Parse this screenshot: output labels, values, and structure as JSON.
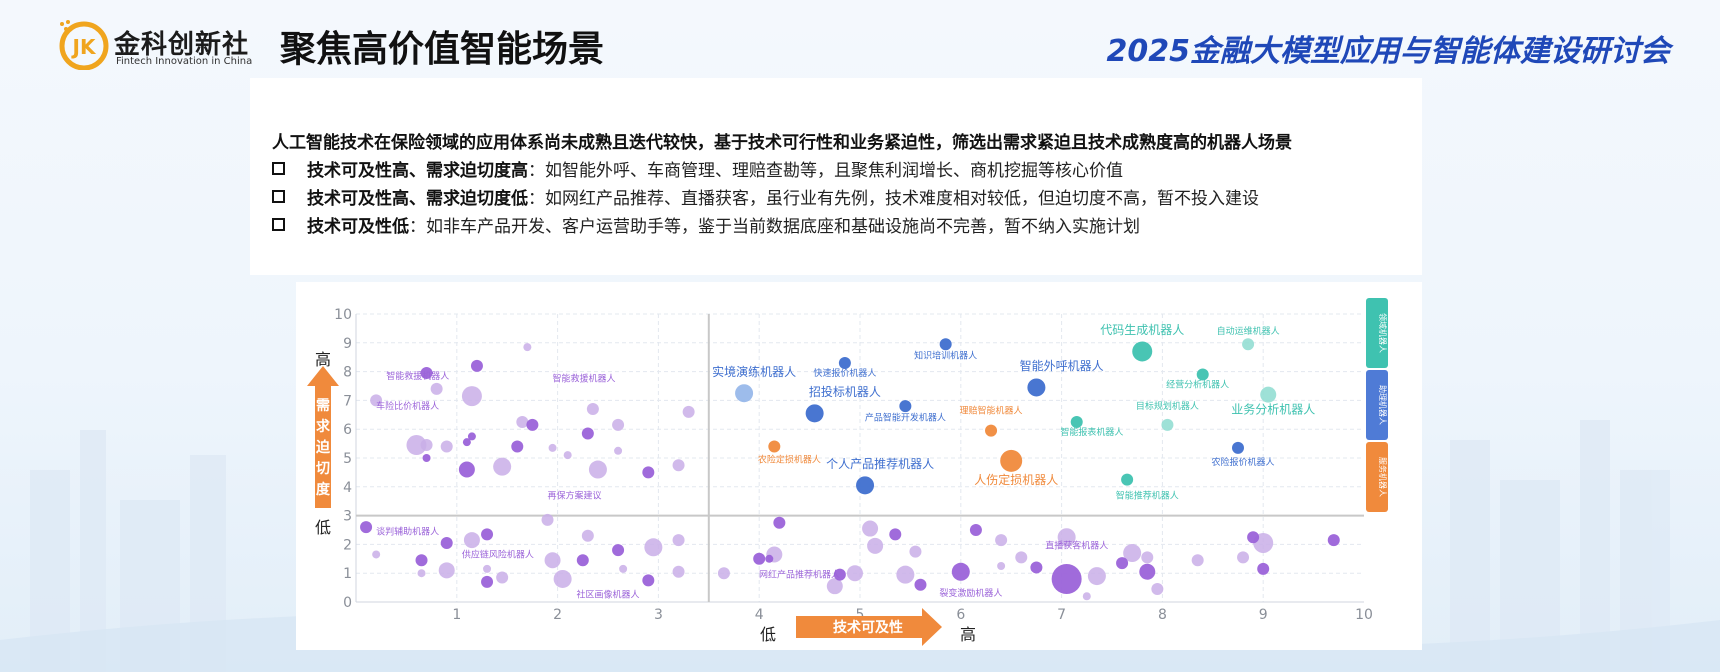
{
  "header": {
    "logo_cn": "金科创新社",
    "logo_en": "Fintech Innovation in China",
    "logo_mark": "JK",
    "title": "聚焦高价值智能场景",
    "event": "2025金融大模型应用与智能体建设研讨会"
  },
  "textbox": {
    "intro": "人工智能技术在保险领域的应用体系尚未成熟且迭代较快，基于技术可行性和业务紧迫性，筛选出需求紧迫且技术成熟度高的机器人场景",
    "bullets": [
      {
        "bold": "技术可及性高、需求迫切度高",
        "text": "：如智能外呼、车商管理、理赔查勘等，且聚焦利润增长、商机挖掘等核心价值"
      },
      {
        "bold": "技术可及性高、需求迫切度低",
        "text": "：如网红产品推荐、直播获客，虽行业有先例，技术难度相对较低，但迫切度不高，暂不投入建设"
      },
      {
        "bold": "技术可及性低",
        "text": "：如非车产品开发、客户运营助手等，鉴于当前数据底座和基础设施尚不完善，暂不纳入实施计划"
      }
    ]
  },
  "chart_data": {
    "type": "scatter",
    "xlim": [
      0,
      10
    ],
    "ylim": [
      0,
      10
    ],
    "x_ticks": [
      "1",
      "2",
      "3",
      "4",
      "5",
      "6",
      "7",
      "8",
      "9",
      "10"
    ],
    "y_ticks": [
      "0",
      "1",
      "2",
      "3",
      "4",
      "5",
      "6",
      "7",
      "8",
      "9",
      "10"
    ],
    "divider_x": 3.5,
    "divider_y": 3,
    "grid": true,
    "x_axis": {
      "low": "低",
      "label": "技术可及性",
      "high": "高"
    },
    "y_axis": {
      "high": "高",
      "label": "需求迫切度",
      "low": "低"
    },
    "legend": [
      "领域机器人",
      "助理机器人",
      "服务机器人"
    ],
    "colors": {
      "purple_light": "#c9aee8",
      "purple_dark": "#9b63d9",
      "blue_light": "#8cb0e8",
      "blue_dark": "#3f6fcf",
      "teal_light": "#8ddcd0",
      "teal_dark": "#3fc2b0",
      "orange": "#f08a3c"
    },
    "labels": [
      {
        "text": "代码生成机器人",
        "x": 7.8,
        "y": 9.3,
        "color": "teal_dark",
        "size": 12
      },
      {
        "text": "自动运维机器人",
        "x": 8.85,
        "y": 9.3,
        "color": "teal_dark",
        "size": 9
      },
      {
        "text": "知识培训机器人",
        "x": 5.85,
        "y": 8.45,
        "color": "blue_dark",
        "size": 9
      },
      {
        "text": "实境演练机器人",
        "x": 3.95,
        "y": 7.85,
        "color": "blue_dark",
        "size": 12
      },
      {
        "text": "快速报价机器人",
        "x": 4.85,
        "y": 7.85,
        "color": "blue_dark",
        "size": 9
      },
      {
        "text": "智能外呼机器人",
        "x": 7.0,
        "y": 8.05,
        "color": "blue_dark",
        "size": 12
      },
      {
        "text": "经营分析机器人",
        "x": 8.35,
        "y": 7.45,
        "color": "teal_dark",
        "size": 9
      },
      {
        "text": "招投标机器人",
        "x": 4.85,
        "y": 7.15,
        "color": "blue_dark",
        "size": 12
      },
      {
        "text": "产品智能开发机器人",
        "x": 5.45,
        "y": 6.3,
        "color": "blue_dark",
        "size": 9
      },
      {
        "text": "理赔智能机器人",
        "x": 6.3,
        "y": 6.55,
        "color": "orange",
        "size": 9
      },
      {
        "text": "目标规划机器人",
        "x": 8.05,
        "y": 6.7,
        "color": "teal_dark",
        "size": 9
      },
      {
        "text": "业务分析机器人",
        "x": 9.1,
        "y": 6.55,
        "color": "teal_dark",
        "size": 12
      },
      {
        "text": "智能报表机器人",
        "x": 7.3,
        "y": 5.8,
        "color": "teal_dark",
        "size": 9
      },
      {
        "text": "农险定损机器人",
        "x": 4.3,
        "y": 4.85,
        "color": "orange",
        "size": 9
      },
      {
        "text": "农险报价机器人",
        "x": 8.8,
        "y": 4.75,
        "color": "blue_dark",
        "size": 9
      },
      {
        "text": "个人产品推荐机器人",
        "x": 5.2,
        "y": 4.65,
        "color": "blue_dark",
        "size": 12
      },
      {
        "text": "人伤定损机器人",
        "x": 6.55,
        "y": 4.1,
        "color": "orange",
        "size": 12
      },
      {
        "text": "智能推荐机器人",
        "x": 7.85,
        "y": 3.6,
        "color": "teal_dark",
        "size": 9
      },
      {
        "text": "智能救援机器人",
        "x": 0.3,
        "y": 7.75,
        "color": "purple_dark",
        "size": 9,
        "anchor": "start"
      },
      {
        "text": "智能救援机器人",
        "x": 1.95,
        "y": 7.65,
        "color": "purple_dark",
        "size": 9,
        "anchor": "start"
      },
      {
        "text": "车险比价机器人",
        "x": 0.2,
        "y": 6.7,
        "color": "purple_dark",
        "size": 9,
        "anchor": "start"
      },
      {
        "text": "再保方案建议",
        "x": 1.9,
        "y": 3.6,
        "color": "purple_dark",
        "size": 9,
        "anchor": "start"
      },
      {
        "text": "谈判辅助机器人",
        "x": 0.2,
        "y": 2.35,
        "color": "purple_dark",
        "size": 9,
        "anchor": "start"
      },
      {
        "text": "供应链风险机器人",
        "x": 1.05,
        "y": 1.55,
        "color": "purple_dark",
        "size": 9,
        "anchor": "start"
      },
      {
        "text": "社区画像机器人",
        "x": 2.5,
        "y": 0.15,
        "color": "purple_dark",
        "size": 9
      },
      {
        "text": "网红产品推荐机器人",
        "x": 4.4,
        "y": 0.85,
        "color": "purple_dark",
        "size": 9
      },
      {
        "text": "裂变激励机器人",
        "x": 6.1,
        "y": 0.2,
        "color": "purple_dark",
        "size": 9
      },
      {
        "text": "直播获客机器人",
        "x": 7.15,
        "y": 1.85,
        "color": "purple_dark",
        "size": 9
      }
    ],
    "points": [
      {
        "x": 7.8,
        "y": 8.7,
        "r": 10,
        "color": "teal_dark"
      },
      {
        "x": 8.85,
        "y": 8.95,
        "r": 6,
        "color": "teal_light"
      },
      {
        "x": 8.4,
        "y": 7.9,
        "r": 6,
        "color": "teal_dark"
      },
      {
        "x": 9.05,
        "y": 7.2,
        "r": 8,
        "color": "teal_light"
      },
      {
        "x": 7.15,
        "y": 6.25,
        "r": 6,
        "color": "teal_dark"
      },
      {
        "x": 8.05,
        "y": 6.15,
        "r": 6,
        "color": "teal_light"
      },
      {
        "x": 7.65,
        "y": 4.25,
        "r": 6,
        "color": "teal_dark"
      },
      {
        "x": 5.85,
        "y": 8.95,
        "r": 6,
        "color": "blue_dark"
      },
      {
        "x": 4.85,
        "y": 8.3,
        "r": 6,
        "color": "blue_dark"
      },
      {
        "x": 6.75,
        "y": 7.45,
        "r": 9,
        "color": "blue_dark"
      },
      {
        "x": 3.85,
        "y": 7.25,
        "r": 9,
        "color": "blue_light"
      },
      {
        "x": 5.45,
        "y": 6.8,
        "r": 6,
        "color": "blue_dark"
      },
      {
        "x": 4.55,
        "y": 6.55,
        "r": 9,
        "color": "blue_dark"
      },
      {
        "x": 5.05,
        "y": 4.05,
        "r": 9,
        "color": "blue_dark"
      },
      {
        "x": 8.75,
        "y": 5.35,
        "r": 6,
        "color": "blue_dark"
      },
      {
        "x": 4.15,
        "y": 5.4,
        "r": 6,
        "color": "orange"
      },
      {
        "x": 6.3,
        "y": 5.95,
        "r": 6,
        "color": "orange"
      },
      {
        "x": 6.5,
        "y": 4.9,
        "r": 11,
        "color": "orange"
      },
      {
        "x": 0.7,
        "y": 7.95,
        "r": 6,
        "color": "purple_dark"
      },
      {
        "x": 1.2,
        "y": 8.2,
        "r": 6,
        "color": "purple_dark"
      },
      {
        "x": 1.7,
        "y": 8.85,
        "r": 4,
        "color": "purple_light"
      },
      {
        "x": 0.8,
        "y": 7.4,
        "r": 6,
        "color": "purple_light"
      },
      {
        "x": 1.15,
        "y": 7.15,
        "r": 10,
        "color": "purple_light"
      },
      {
        "x": 0.2,
        "y": 7.0,
        "r": 6,
        "color": "purple_light"
      },
      {
        "x": 2.35,
        "y": 6.7,
        "r": 6,
        "color": "purple_light"
      },
      {
        "x": 3.3,
        "y": 6.6,
        "r": 6,
        "color": "purple_light"
      },
      {
        "x": 1.65,
        "y": 6.25,
        "r": 6,
        "color": "purple_light"
      },
      {
        "x": 1.75,
        "y": 6.15,
        "r": 6,
        "color": "purple_dark"
      },
      {
        "x": 2.6,
        "y": 6.15,
        "r": 6,
        "color": "purple_light"
      },
      {
        "x": 1.15,
        "y": 5.75,
        "r": 4,
        "color": "purple_dark"
      },
      {
        "x": 1.1,
        "y": 5.55,
        "r": 4,
        "color": "purple_dark"
      },
      {
        "x": 2.3,
        "y": 5.85,
        "r": 6,
        "color": "purple_dark"
      },
      {
        "x": 0.6,
        "y": 5.45,
        "r": 10,
        "color": "purple_light"
      },
      {
        "x": 0.7,
        "y": 5.45,
        "r": 6,
        "color": "purple_light"
      },
      {
        "x": 0.9,
        "y": 5.4,
        "r": 6,
        "color": "purple_light"
      },
      {
        "x": 1.6,
        "y": 5.4,
        "r": 6,
        "color": "purple_dark"
      },
      {
        "x": 1.95,
        "y": 5.35,
        "r": 4,
        "color": "purple_light"
      },
      {
        "x": 2.1,
        "y": 5.1,
        "r": 4,
        "color": "purple_light"
      },
      {
        "x": 2.6,
        "y": 5.25,
        "r": 4,
        "color": "purple_light"
      },
      {
        "x": 0.7,
        "y": 5.0,
        "r": 4,
        "color": "purple_dark"
      },
      {
        "x": 1.45,
        "y": 4.7,
        "r": 9,
        "color": "purple_light"
      },
      {
        "x": 1.1,
        "y": 4.6,
        "r": 8,
        "color": "purple_dark"
      },
      {
        "x": 2.4,
        "y": 4.6,
        "r": 9,
        "color": "purple_light"
      },
      {
        "x": 3.2,
        "y": 4.75,
        "r": 6,
        "color": "purple_light"
      },
      {
        "x": 2.9,
        "y": 4.5,
        "r": 6,
        "color": "purple_dark"
      },
      {
        "x": 0.1,
        "y": 2.6,
        "r": 6,
        "color": "purple_dark"
      },
      {
        "x": 0.2,
        "y": 1.65,
        "r": 4,
        "color": "purple_light"
      },
      {
        "x": 0.65,
        "y": 1.45,
        "r": 6,
        "color": "purple_dark"
      },
      {
        "x": 0.65,
        "y": 1.0,
        "r": 4,
        "color": "purple_light"
      },
      {
        "x": 0.9,
        "y": 2.05,
        "r": 6,
        "color": "purple_dark"
      },
      {
        "x": 0.9,
        "y": 1.1,
        "r": 8,
        "color": "purple_light"
      },
      {
        "x": 1.15,
        "y": 2.15,
        "r": 8,
        "color": "purple_light"
      },
      {
        "x": 1.3,
        "y": 2.35,
        "r": 6,
        "color": "purple_dark"
      },
      {
        "x": 1.3,
        "y": 1.15,
        "r": 4,
        "color": "purple_light"
      },
      {
        "x": 1.3,
        "y": 0.7,
        "r": 6,
        "color": "purple_dark"
      },
      {
        "x": 1.45,
        "y": 0.85,
        "r": 6,
        "color": "purple_light"
      },
      {
        "x": 1.9,
        "y": 2.85,
        "r": 6,
        "color": "purple_light"
      },
      {
        "x": 1.95,
        "y": 1.45,
        "r": 8,
        "color": "purple_light"
      },
      {
        "x": 2.05,
        "y": 0.8,
        "r": 9,
        "color": "purple_light"
      },
      {
        "x": 2.3,
        "y": 2.3,
        "r": 6,
        "color": "purple_light"
      },
      {
        "x": 2.25,
        "y": 1.45,
        "r": 6,
        "color": "purple_dark"
      },
      {
        "x": 2.6,
        "y": 1.8,
        "r": 6,
        "color": "purple_dark"
      },
      {
        "x": 2.65,
        "y": 1.15,
        "r": 4,
        "color": "purple_light"
      },
      {
        "x": 2.9,
        "y": 0.75,
        "r": 6,
        "color": "purple_dark"
      },
      {
        "x": 2.95,
        "y": 1.9,
        "r": 9,
        "color": "purple_light"
      },
      {
        "x": 3.2,
        "y": 2.15,
        "r": 6,
        "color": "purple_light"
      },
      {
        "x": 3.2,
        "y": 1.05,
        "r": 6,
        "color": "purple_light"
      },
      {
        "x": 3.65,
        "y": 1.0,
        "r": 6,
        "color": "purple_light"
      },
      {
        "x": 4.1,
        "y": 1.5,
        "r": 4,
        "color": "purple_dark"
      },
      {
        "x": 4.0,
        "y": 1.5,
        "r": 6,
        "color": "purple_dark"
      },
      {
        "x": 4.2,
        "y": 2.75,
        "r": 6,
        "color": "purple_dark"
      },
      {
        "x": 4.15,
        "y": 1.65,
        "r": 8,
        "color": "purple_light"
      },
      {
        "x": 4.8,
        "y": 0.95,
        "r": 6,
        "color": "purple_dark"
      },
      {
        "x": 4.75,
        "y": 0.55,
        "r": 8,
        "color": "purple_light"
      },
      {
        "x": 4.95,
        "y": 1.0,
        "r": 8,
        "color": "purple_light"
      },
      {
        "x": 5.1,
        "y": 2.55,
        "r": 8,
        "color": "purple_light"
      },
      {
        "x": 5.15,
        "y": 1.95,
        "r": 8,
        "color": "purple_light"
      },
      {
        "x": 5.35,
        "y": 2.35,
        "r": 6,
        "color": "purple_dark"
      },
      {
        "x": 5.55,
        "y": 1.75,
        "r": 6,
        "color": "purple_light"
      },
      {
        "x": 5.45,
        "y": 0.95,
        "r": 9,
        "color": "purple_light"
      },
      {
        "x": 5.6,
        "y": 0.6,
        "r": 6,
        "color": "purple_dark"
      },
      {
        "x": 6.0,
        "y": 1.05,
        "r": 9,
        "color": "purple_dark"
      },
      {
        "x": 6.15,
        "y": 2.5,
        "r": 6,
        "color": "purple_dark"
      },
      {
        "x": 6.4,
        "y": 2.15,
        "r": 6,
        "color": "purple_light"
      },
      {
        "x": 6.4,
        "y": 1.25,
        "r": 4,
        "color": "purple_light"
      },
      {
        "x": 6.6,
        "y": 1.55,
        "r": 6,
        "color": "purple_light"
      },
      {
        "x": 6.75,
        "y": 1.2,
        "r": 6,
        "color": "purple_dark"
      },
      {
        "x": 7.05,
        "y": 0.8,
        "r": 15,
        "color": "purple_dark"
      },
      {
        "x": 7.05,
        "y": 2.25,
        "r": 9,
        "color": "purple_light"
      },
      {
        "x": 7.25,
        "y": 0.2,
        "r": 4,
        "color": "purple_light"
      },
      {
        "x": 7.35,
        "y": 0.9,
        "r": 9,
        "color": "purple_light"
      },
      {
        "x": 7.6,
        "y": 1.35,
        "r": 6,
        "color": "purple_dark"
      },
      {
        "x": 7.7,
        "y": 1.7,
        "r": 9,
        "color": "purple_light"
      },
      {
        "x": 7.85,
        "y": 1.05,
        "r": 8,
        "color": "purple_dark"
      },
      {
        "x": 7.85,
        "y": 1.55,
        "r": 6,
        "color": "purple_light"
      },
      {
        "x": 7.95,
        "y": 0.45,
        "r": 6,
        "color": "purple_light"
      },
      {
        "x": 8.35,
        "y": 1.45,
        "r": 6,
        "color": "purple_light"
      },
      {
        "x": 8.8,
        "y": 1.55,
        "r": 6,
        "color": "purple_light"
      },
      {
        "x": 8.9,
        "y": 2.25,
        "r": 6,
        "color": "purple_dark"
      },
      {
        "x": 9.0,
        "y": 2.05,
        "r": 10,
        "color": "purple_light"
      },
      {
        "x": 9.0,
        "y": 1.15,
        "r": 6,
        "color": "purple_dark"
      },
      {
        "x": 9.7,
        "y": 2.15,
        "r": 6,
        "color": "purple_dark"
      }
    ]
  }
}
